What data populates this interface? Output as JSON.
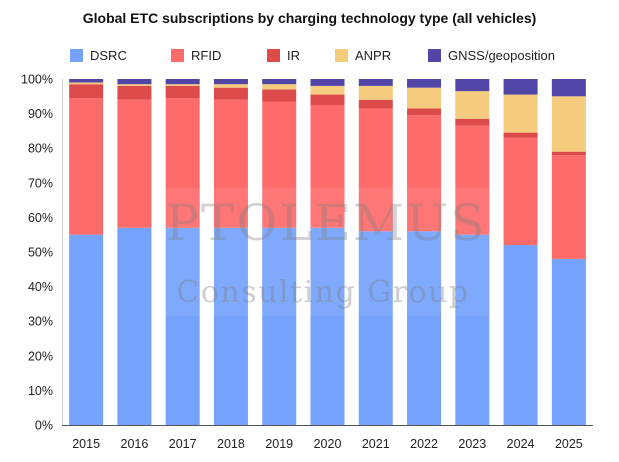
{
  "chart_data": {
    "type": "bar",
    "stacked": true,
    "title": "Global ETC subscriptions by charging technology type (all vehicles)",
    "categories": [
      "2015",
      "2016",
      "2017",
      "2018",
      "2019",
      "2020",
      "2021",
      "2022",
      "2023",
      "2024",
      "2025"
    ],
    "series": [
      {
        "name": "DSRC",
        "color": "#74a2fd",
        "values": [
          55,
          57,
          57,
          57,
          57,
          57,
          56,
          56,
          55,
          52,
          48
        ]
      },
      {
        "name": "RFID",
        "color": "#fe6b6b",
        "values": [
          39.5,
          37,
          37.5,
          37,
          36.5,
          35.5,
          35.5,
          33.5,
          31.5,
          31,
          30
        ]
      },
      {
        "name": "IR",
        "color": "#dd4a4a",
        "values": [
          4,
          4,
          3.5,
          3.5,
          3.5,
          3,
          2.5,
          2,
          2,
          1.5,
          1
        ]
      },
      {
        "name": "ANPR",
        "color": "#f5cb7d",
        "values": [
          0.5,
          0.5,
          0.5,
          1,
          1.5,
          2.5,
          4,
          6,
          8,
          11,
          16
        ]
      },
      {
        "name": "GNSS/geoposition",
        "color": "#5145a8",
        "values": [
          1,
          1.5,
          1.5,
          1.5,
          1.5,
          2,
          2,
          2.5,
          3.5,
          4.5,
          5
        ]
      }
    ],
    "yticks": [
      "0%",
      "10%",
      "20%",
      "30%",
      "40%",
      "50%",
      "60%",
      "70%",
      "80%",
      "90%",
      "100%"
    ],
    "ylim": [
      0,
      100
    ],
    "xlabel": "",
    "ylabel": "",
    "legend_position": "top",
    "grid": false
  },
  "watermark": {
    "line1": "PTOLEMUS",
    "line2": "Consulting Group"
  }
}
